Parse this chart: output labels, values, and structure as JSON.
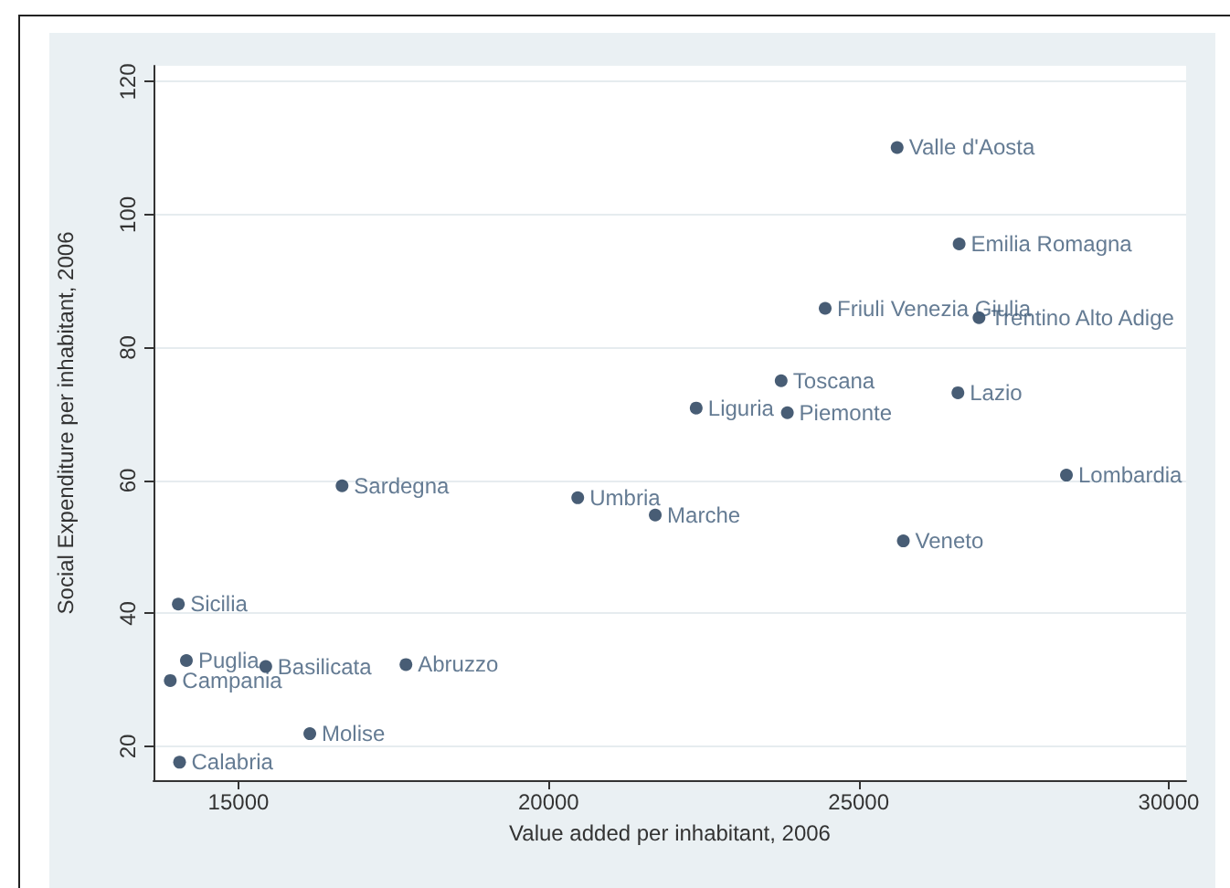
{
  "chart_data": {
    "type": "scatter",
    "xlabel": "Value added per inhabitant, 2006",
    "ylabel": "Social Expenditure per inhabitant, 2006",
    "x": [
      25620,
      26620,
      24460,
      26940,
      23750,
      26600,
      22380,
      23850,
      28350,
      16670,
      20470,
      21720,
      25720,
      14030,
      14160,
      15440,
      17700,
      13900,
      16150,
      14050
    ],
    "values": [
      110.1,
      95.6,
      85.9,
      84.5,
      75.0,
      73.2,
      70.9,
      70.2,
      60.8,
      59.2,
      57.4,
      54.8,
      50.9,
      41.4,
      32.9,
      32.0,
      32.3,
      29.9,
      21.9,
      17.6
    ],
    "value_labels": [
      "Valle d'Aosta",
      "Emilia Romagna",
      "Friuli Venezia Giulia",
      "Trentino Alto Adige",
      "Toscana",
      "Lazio",
      "Liguria",
      "Piemonte",
      "Lombardia",
      "Sardegna",
      "Umbria",
      "Marche",
      "Veneto",
      "Sicilia",
      "Puglia",
      "Basilicata",
      "Abruzzo",
      "Campania",
      "Molise",
      "Calabria"
    ],
    "color": "#1a3552",
    "marker": "circle",
    "xlim": [
      13630,
      30280
    ],
    "xticks": [
      15000,
      20000,
      25000,
      30000
    ],
    "ylim": [
      14.9,
      122.4
    ],
    "yticks": [
      20,
      40,
      60,
      80,
      100,
      120
    ],
    "grid": "y"
  }
}
